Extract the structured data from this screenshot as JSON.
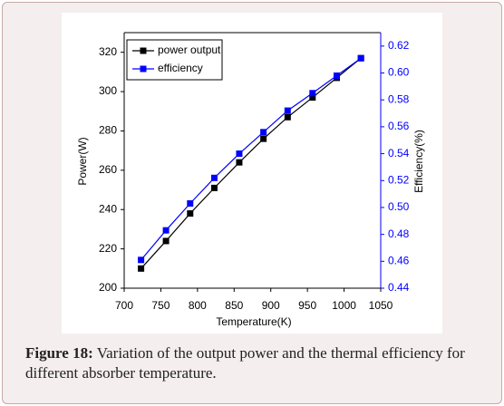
{
  "chart_data": {
    "type": "line",
    "x_label": "Temperature(K)",
    "y_label": "Power(W)",
    "y2_label": "Efficiency(%)",
    "x": [
      723,
      757,
      790,
      823,
      857,
      890,
      923,
      957,
      990,
      1023
    ],
    "series": [
      {
        "name": "power output",
        "color": "#000000",
        "values": [
          210,
          224,
          238,
          251,
          264,
          276,
          287,
          297,
          307,
          317
        ]
      },
      {
        "name": "efficiency",
        "color": "#0000ff",
        "axis": "y2",
        "values": [
          0.461,
          0.483,
          0.503,
          0.522,
          0.54,
          0.556,
          0.572,
          0.585,
          0.598,
          0.611
        ]
      }
    ],
    "xlim": [
      700,
      1050
    ],
    "xticks": [
      700,
      750,
      800,
      850,
      900,
      950,
      1000,
      1050
    ],
    "ylim": [
      200,
      330
    ],
    "yticks": [
      200,
      220,
      240,
      260,
      280,
      300,
      320
    ],
    "y2lim": [
      0.44,
      0.63
    ],
    "y2ticks": [
      0.44,
      0.46,
      0.48,
      0.5,
      0.52,
      0.54,
      0.56,
      0.58,
      0.6,
      0.62
    ],
    "legend": "upper left",
    "caption_label": "Figure 18:",
    "caption": "Variation of the output power and the thermal efficiency for different absorber temperature."
  }
}
